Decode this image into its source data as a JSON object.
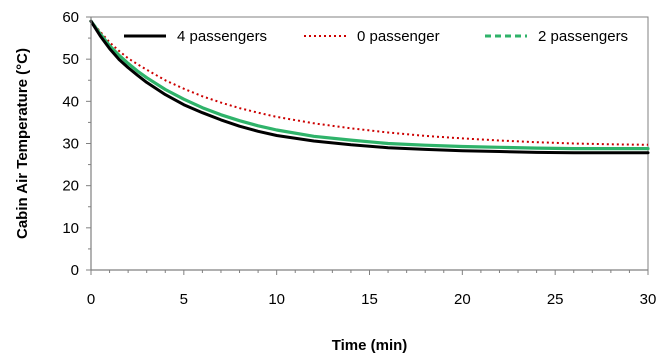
{
  "chart_data": {
    "type": "line",
    "title": "",
    "xlabel": "Time (min)",
    "ylabel": "Cabin Air Temperature (°C)",
    "xlim": [
      0,
      30
    ],
    "ylim": [
      0,
      60
    ],
    "xticks": [
      0,
      5,
      10,
      15,
      20,
      25,
      30
    ],
    "yticks": [
      0,
      10,
      20,
      30,
      40,
      50,
      60
    ],
    "grid": false,
    "legend_position": "top",
    "x": [
      0,
      0.5,
      1,
      1.5,
      2,
      2.5,
      3,
      4,
      5,
      6,
      7,
      8,
      9,
      10,
      12,
      14,
      16,
      18,
      20,
      22,
      24,
      26,
      28,
      30
    ],
    "series": [
      {
        "name": "4 passengers",
        "color": "#000000",
        "style": "solid",
        "values": [
          59.0,
          55.5,
          52.5,
          50.0,
          48.0,
          46.2,
          44.5,
          41.6,
          39.2,
          37.3,
          35.6,
          34.1,
          32.9,
          31.9,
          30.6,
          29.7,
          29.0,
          28.6,
          28.3,
          28.1,
          27.9,
          27.8,
          27.8,
          27.8
        ]
      },
      {
        "name": "0 passenger",
        "color": "#cc0000",
        "style": "dotted",
        "values": [
          59.0,
          56.5,
          54.0,
          52.0,
          50.2,
          48.8,
          47.5,
          45.0,
          43.0,
          41.2,
          39.7,
          38.4,
          37.3,
          36.3,
          34.8,
          33.6,
          32.6,
          31.8,
          31.2,
          30.7,
          30.3,
          30.0,
          29.8,
          29.7
        ]
      },
      {
        "name": "2 passengers",
        "color": "#2fb36a",
        "style": "solid",
        "values": [
          59.0,
          56.0,
          53.2,
          51.0,
          49.0,
          47.2,
          45.6,
          42.8,
          40.5,
          38.5,
          36.8,
          35.4,
          34.2,
          33.2,
          31.7,
          30.8,
          30.0,
          29.6,
          29.3,
          29.1,
          28.9,
          28.8,
          28.8,
          28.8
        ]
      }
    ]
  }
}
